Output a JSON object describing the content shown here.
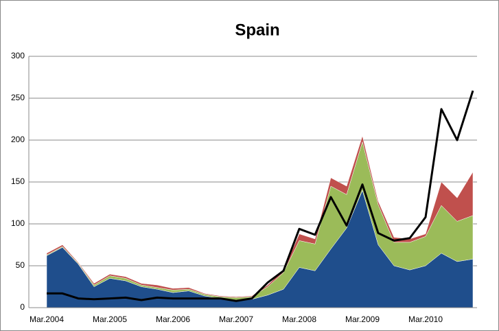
{
  "chart_data": {
    "type": "stacked-area-line",
    "title": "Spain",
    "categories": [
      "Mar.2004",
      null,
      null,
      null,
      "Mar.2005",
      null,
      null,
      null,
      "Mar.2006",
      null,
      null,
      null,
      "Mar.2007",
      null,
      null,
      null,
      "Mar.2008",
      null,
      null,
      null,
      "Mar.2009",
      null,
      null,
      null,
      "Mar.2010",
      null,
      null,
      null
    ],
    "series": [
      {
        "color": "#1f4e8c",
        "values": [
          62,
          72,
          52,
          25,
          35,
          32,
          25,
          22,
          18,
          20,
          14,
          11,
          9,
          10,
          15,
          22,
          48,
          44,
          70,
          95,
          140,
          75,
          50,
          45,
          50,
          65,
          55,
          58
        ]
      },
      {
        "color": "#9bbb59",
        "values": [
          1,
          1,
          1,
          2,
          3,
          3,
          2,
          2,
          3,
          2,
          2,
          2,
          3,
          3,
          10,
          20,
          32,
          32,
          75,
          40,
          58,
          48,
          28,
          33,
          35,
          57,
          48,
          52
        ]
      },
      {
        "color": "#c0504d",
        "values": [
          2,
          2,
          1,
          2,
          2,
          2,
          2,
          3,
          2,
          2,
          1,
          1,
          1,
          1,
          2,
          3,
          8,
          6,
          10,
          10,
          7,
          4,
          6,
          4,
          3,
          28,
          28,
          52
        ]
      }
    ],
    "line": {
      "color": "#000000",
      "values": [
        17,
        17,
        11,
        10,
        11,
        12,
        9,
        12,
        11,
        11,
        11,
        11,
        8,
        11,
        30,
        44,
        94,
        87,
        132,
        98,
        147,
        89,
        80,
        83,
        108,
        237,
        200,
        259
      ]
    },
    "ylim": [
      0,
      300
    ],
    "yticks": [
      0,
      50,
      100,
      150,
      200,
      250,
      300
    ],
    "grid": true
  }
}
